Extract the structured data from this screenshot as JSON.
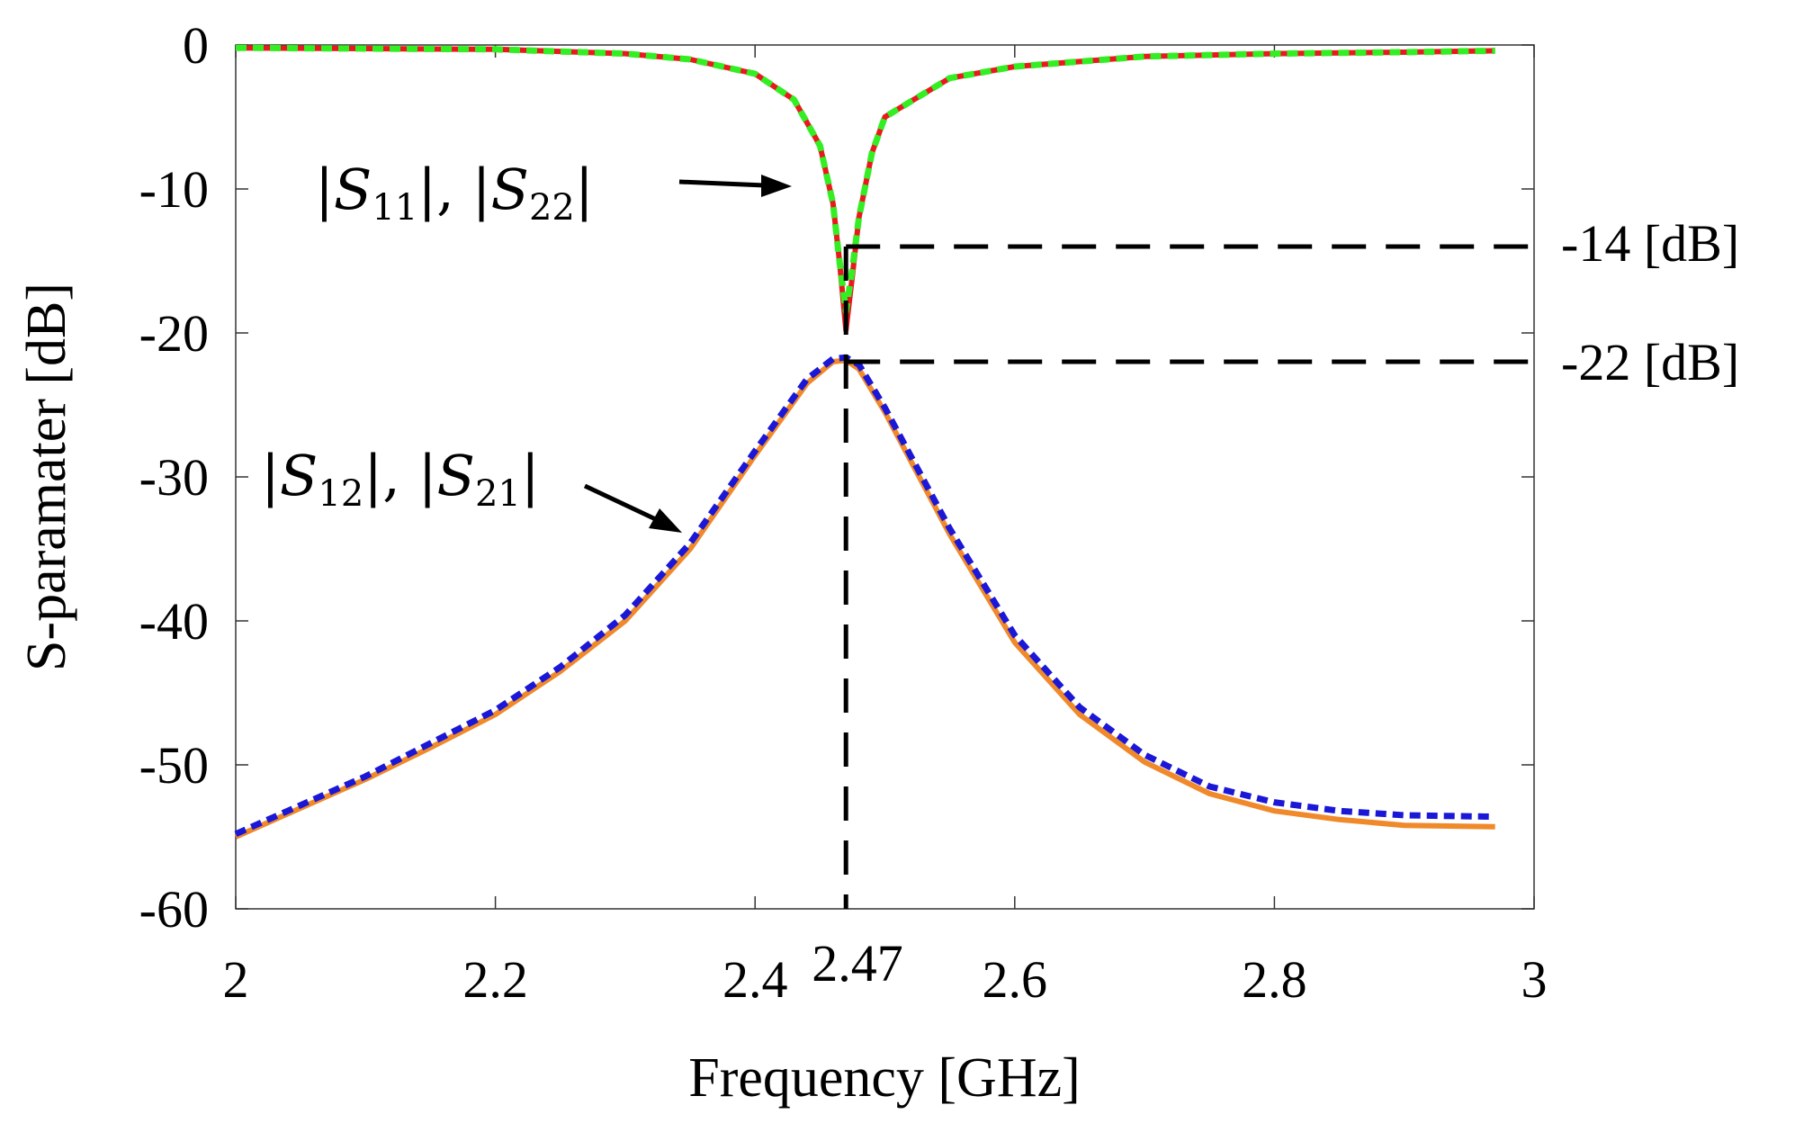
{
  "chart_data": {
    "type": "line",
    "xlabel": "Frequency [GHz]",
    "ylabel": "S-paramater [dB]",
    "xlim": [
      2,
      3
    ],
    "ylim": [
      -60,
      0
    ],
    "xticks": [
      2,
      2.2,
      2.4,
      2.6,
      2.8,
      3
    ],
    "xtick_labels": [
      "2",
      "2.2",
      "2.4",
      "2.6",
      "2.8",
      "3"
    ],
    "yticks": [
      0,
      -10,
      -20,
      -30,
      -40,
      -50,
      -60
    ],
    "ytick_labels": [
      "0",
      "-10",
      "-20",
      "-30",
      "-40",
      "-50",
      "-60"
    ],
    "grid": false,
    "series": [
      {
        "name": "S11",
        "color": "#e8191e",
        "style": "solid",
        "x": [
          2.0,
          2.1,
          2.2,
          2.3,
          2.35,
          2.4,
          2.43,
          2.45,
          2.46,
          2.465,
          2.47,
          2.475,
          2.48,
          2.49,
          2.5,
          2.55,
          2.6,
          2.7,
          2.8,
          2.9,
          2.97
        ],
        "y": [
          -0.2,
          -0.25,
          -0.3,
          -0.6,
          -1.0,
          -2.0,
          -3.8,
          -7.0,
          -11.0,
          -15.0,
          -19.8,
          -16.0,
          -12.0,
          -7.5,
          -5.0,
          -2.3,
          -1.5,
          -0.8,
          -0.6,
          -0.5,
          -0.4
        ]
      },
      {
        "name": "S22",
        "color": "#33ee22",
        "style": "dashed",
        "x": [
          2.0,
          2.1,
          2.2,
          2.3,
          2.35,
          2.4,
          2.43,
          2.45,
          2.46,
          2.465,
          2.47,
          2.475,
          2.48,
          2.49,
          2.5,
          2.55,
          2.6,
          2.7,
          2.8,
          2.9,
          2.97
        ],
        "y": [
          -0.2,
          -0.25,
          -0.3,
          -0.6,
          -1.0,
          -2.0,
          -3.8,
          -7.0,
          -11.0,
          -15.0,
          -18.5,
          -15.5,
          -12.0,
          -7.5,
          -5.0,
          -2.3,
          -1.5,
          -0.8,
          -0.6,
          -0.5,
          -0.4
        ]
      },
      {
        "name": "S21",
        "color": "#f0892a",
        "style": "solid",
        "x": [
          2.0,
          2.05,
          2.1,
          2.15,
          2.2,
          2.25,
          2.3,
          2.35,
          2.4,
          2.44,
          2.46,
          2.47,
          2.48,
          2.5,
          2.55,
          2.6,
          2.65,
          2.7,
          2.75,
          2.8,
          2.85,
          2.9,
          2.97
        ],
        "y": [
          -55.0,
          -53.0,
          -51.0,
          -48.8,
          -46.5,
          -43.5,
          -40.0,
          -35.0,
          -28.5,
          -23.5,
          -22.0,
          -21.9,
          -22.5,
          -25.5,
          -34.0,
          -41.5,
          -46.5,
          -49.8,
          -52.0,
          -53.2,
          -53.8,
          -54.2,
          -54.3
        ]
      },
      {
        "name": "S12",
        "color": "#1b17d6",
        "style": "dashed",
        "x": [
          2.0,
          2.05,
          2.1,
          2.15,
          2.2,
          2.25,
          2.3,
          2.35,
          2.4,
          2.44,
          2.46,
          2.47,
          2.48,
          2.5,
          2.55,
          2.6,
          2.65,
          2.7,
          2.75,
          2.8,
          2.85,
          2.9,
          2.97
        ],
        "y": [
          -54.8,
          -52.8,
          -50.8,
          -48.5,
          -46.2,
          -43.2,
          -39.6,
          -34.6,
          -28.2,
          -23.2,
          -21.8,
          -21.7,
          -22.2,
          -25.2,
          -33.6,
          -41.0,
          -46.0,
          -49.3,
          -51.5,
          -52.6,
          -53.2,
          -53.5,
          -53.6
        ]
      }
    ],
    "annotations": {
      "s11_s22_label": {
        "prefix_bar": "|",
        "symbol1": "S",
        "sub1": "11",
        "mid": "|, |",
        "symbol2": "S",
        "sub2": "22",
        "suffix_bar": "|"
      },
      "s12_s21_label": {
        "prefix_bar": "|",
        "symbol1": "S",
        "sub1": "12",
        "mid": "|, |",
        "symbol2": "S",
        "sub2": "21",
        "suffix_bar": "|"
      },
      "ref_high_db": -14,
      "ref_high_label": "-14 [dB]",
      "ref_low_db": -22,
      "ref_low_label": "-22 [dB]",
      "marker_freq": 2.47,
      "marker_label": "2.47"
    }
  }
}
